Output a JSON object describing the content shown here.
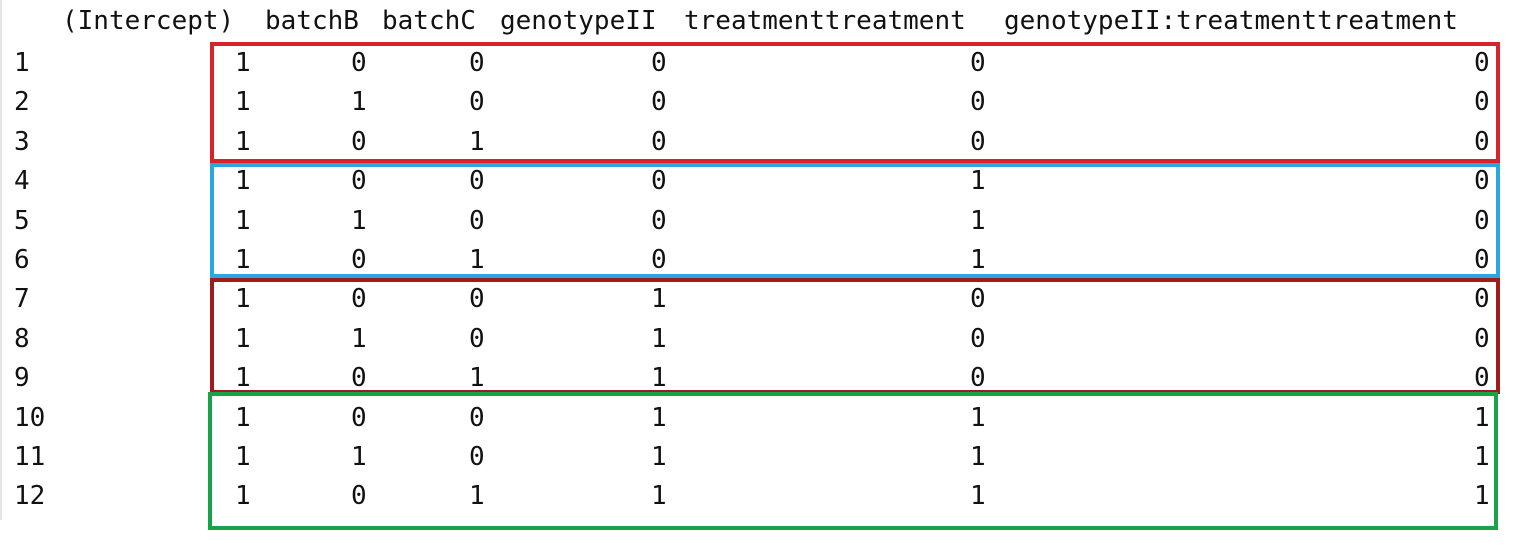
{
  "matrix": {
    "headers": [
      "(Intercept)",
      "batchB",
      "batchC",
      "genotypeII",
      "treatmenttreatment",
      "genotypeII:treatmenttreatment"
    ],
    "row_labels": [
      "1",
      "2",
      "3",
      "4",
      "5",
      "6",
      "7",
      "8",
      "9",
      "10",
      "11",
      "12"
    ],
    "rows": [
      [
        "1",
        "0",
        "0",
        "0",
        "0",
        "0"
      ],
      [
        "1",
        "1",
        "0",
        "0",
        "0",
        "0"
      ],
      [
        "1",
        "0",
        "1",
        "0",
        "0",
        "0"
      ],
      [
        "1",
        "0",
        "0",
        "0",
        "1",
        "0"
      ],
      [
        "1",
        "1",
        "0",
        "0",
        "1",
        "0"
      ],
      [
        "1",
        "0",
        "1",
        "0",
        "1",
        "0"
      ],
      [
        "1",
        "0",
        "0",
        "1",
        "0",
        "0"
      ],
      [
        "1",
        "1",
        "0",
        "1",
        "0",
        "0"
      ],
      [
        "1",
        "0",
        "1",
        "1",
        "0",
        "0"
      ],
      [
        "1",
        "0",
        "0",
        "1",
        "1",
        "1"
      ],
      [
        "1",
        "1",
        "0",
        "1",
        "1",
        "1"
      ],
      [
        "1",
        "0",
        "1",
        "1",
        "1",
        "1"
      ]
    ]
  },
  "group_boxes": [
    {
      "color": "#d8232a"
    },
    {
      "color": "#2aa7df"
    },
    {
      "color": "#a01c1c"
    },
    {
      "color": "#18a34a"
    }
  ]
}
